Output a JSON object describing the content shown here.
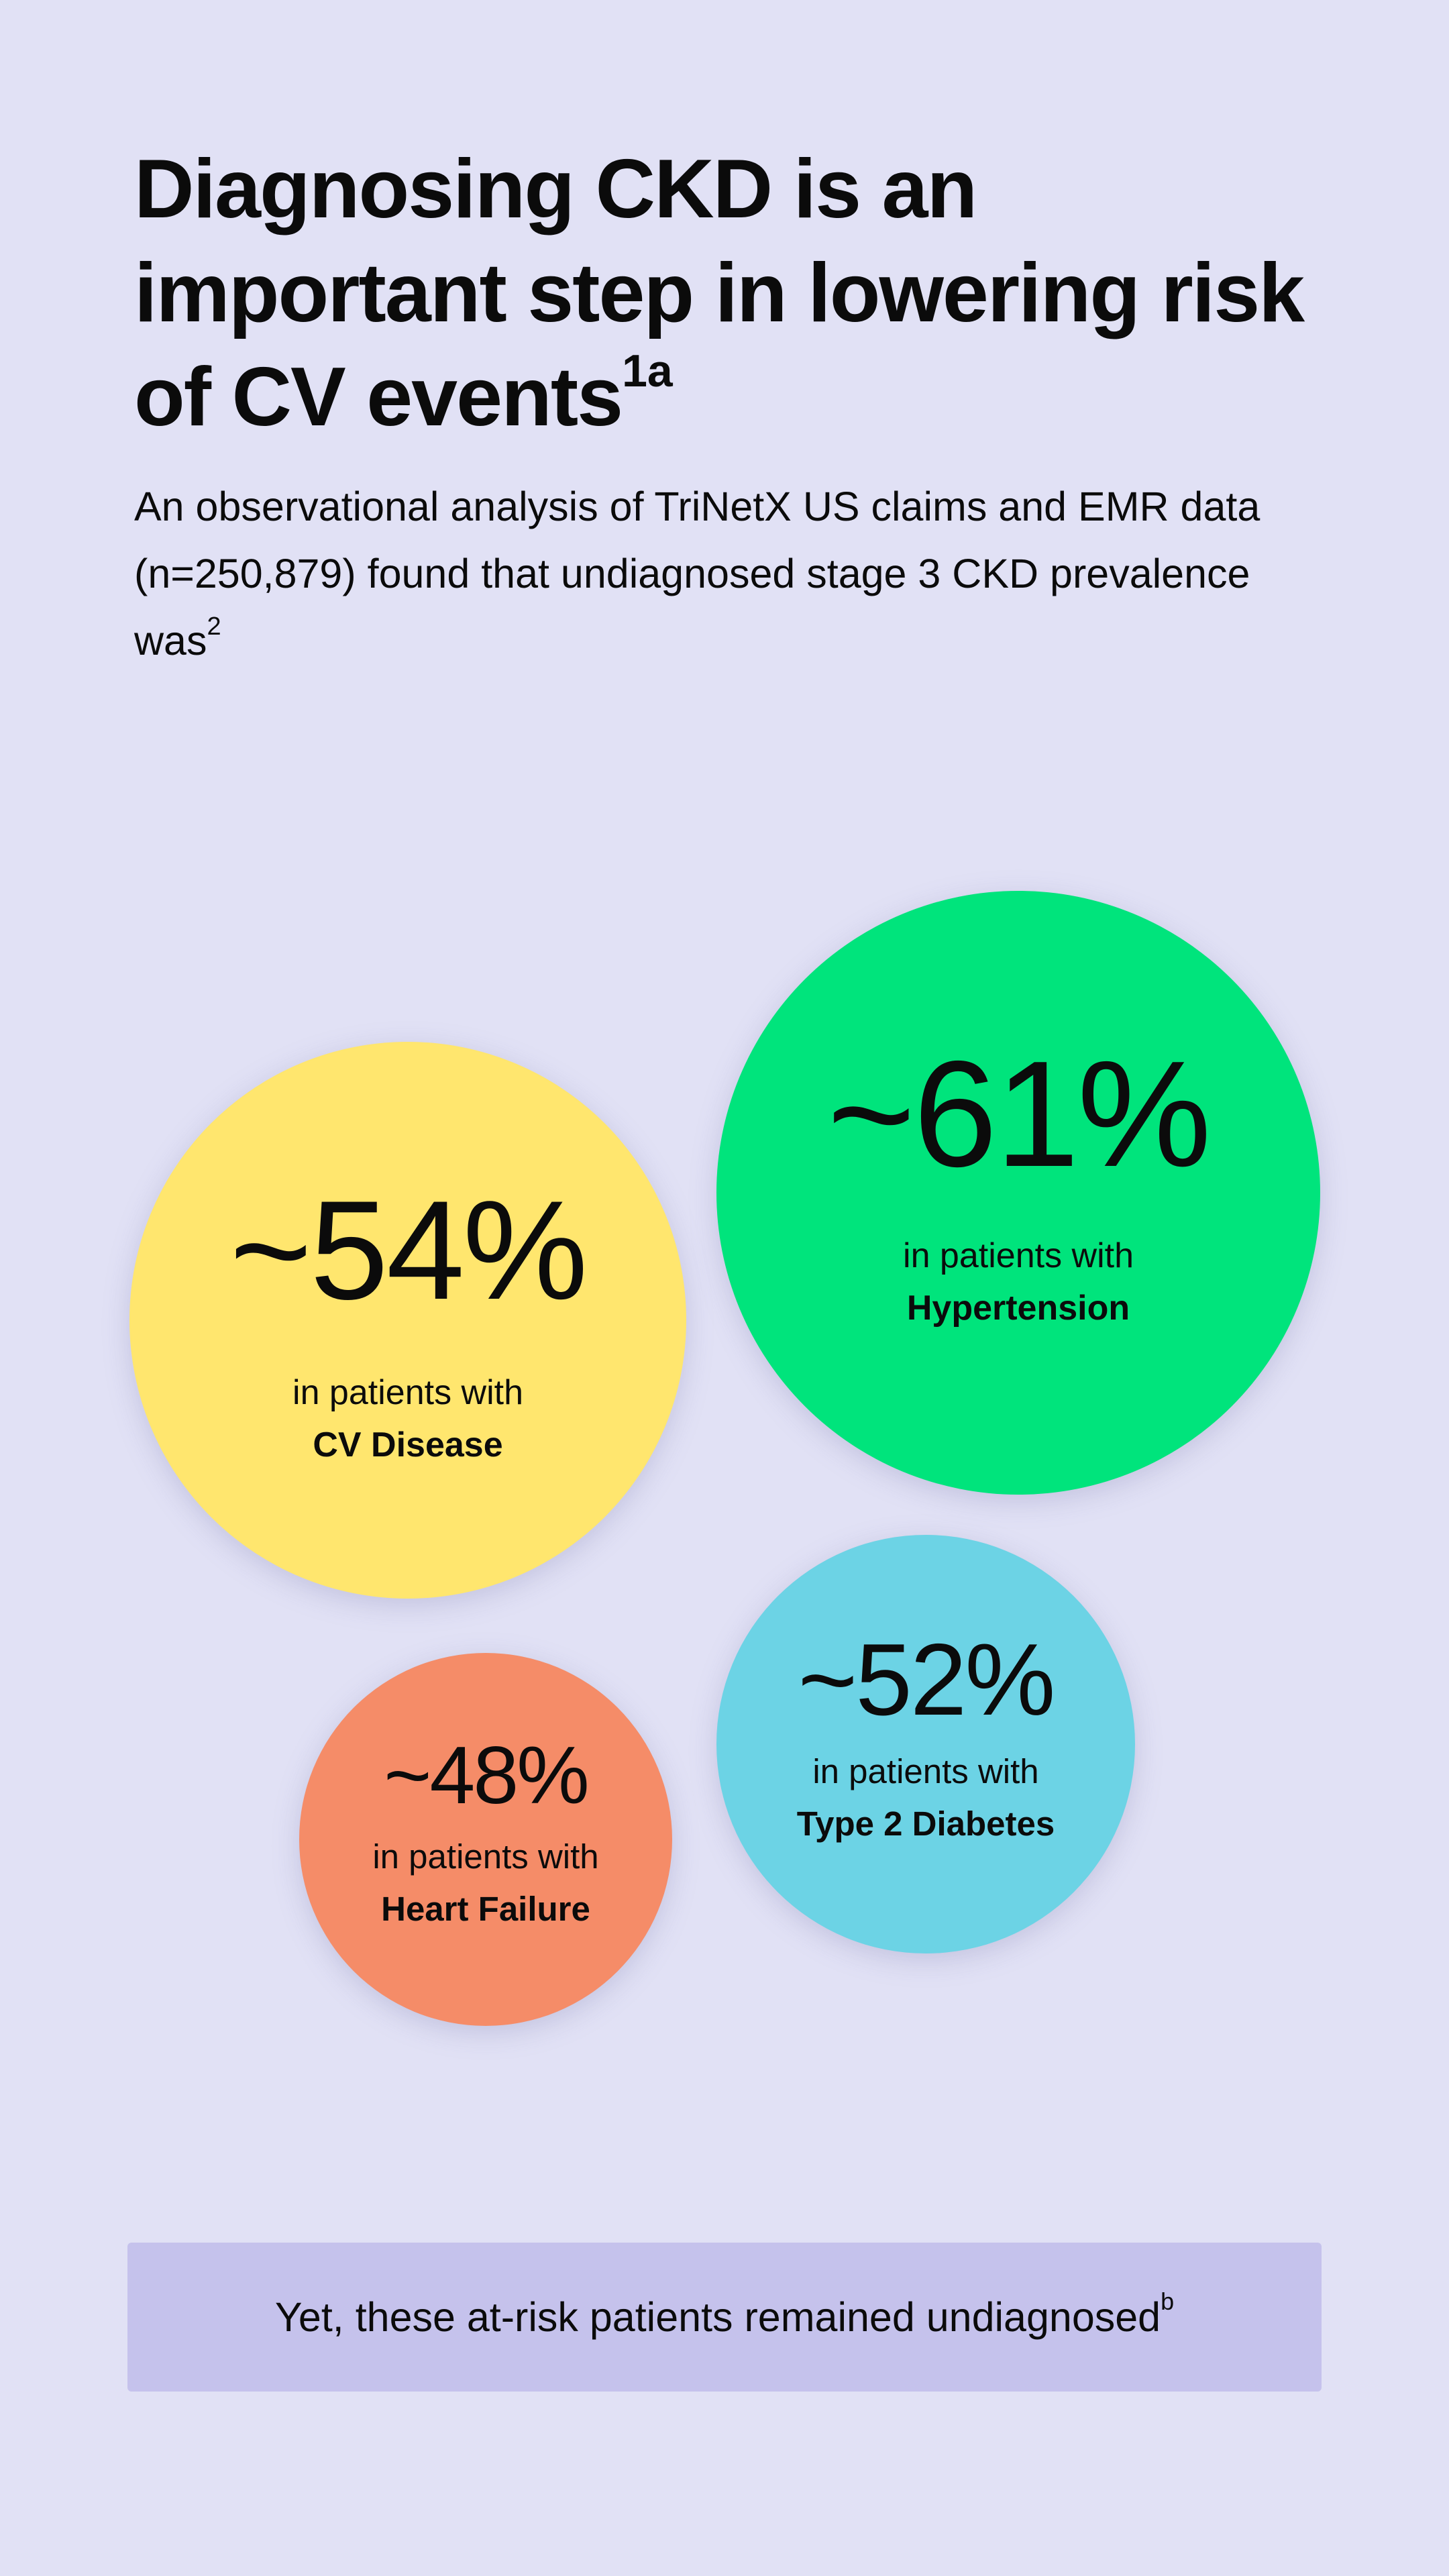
{
  "title": {
    "text": "Diagnosing CKD is an important step in lowering risk of CV events",
    "superscript": "1a"
  },
  "subtitle": {
    "text": "An observational analysis of TriNetX US claims and EMR data (n=250,879) found that undiagnosed stage 3 CKD prevalence was",
    "superscript": "2"
  },
  "stats": [
    {
      "value": "~54%",
      "prefix": "in patients with",
      "condition": "CV Disease",
      "color": "#ffe66e"
    },
    {
      "value": "~61%",
      "prefix": "in patients with",
      "condition": "Hypertension",
      "color": "#00e47c"
    },
    {
      "value": "~48%",
      "prefix": "in patients with",
      "condition": "Heart Failure",
      "color": "#f58c68"
    },
    {
      "value": "~52%",
      "prefix": "in patients with",
      "condition": "Type 2 Diabetes",
      "color": "#6cd3e5"
    }
  ],
  "footer": {
    "text": "Yet, these at-risk patients remained undiagnosed",
    "superscript": "b"
  },
  "colors": {
    "background": "#e1e1f5",
    "footer_box": "#c5c2ec",
    "text": "#0b0b0b"
  }
}
